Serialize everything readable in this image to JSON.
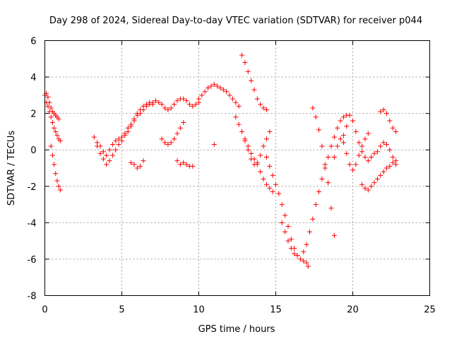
{
  "chart_data": {
    "type": "scatter",
    "title": "Day 298 of 2024, Sidereal Day-to-day VTEC variation (SDTVAR) for receiver p044",
    "xlabel": "GPS time / hours",
    "ylabel": "SDTVAR / TECUs",
    "xlim": [
      0,
      25
    ],
    "ylim": [
      -8,
      6
    ],
    "xticks": [
      0,
      5,
      10,
      15,
      20,
      25
    ],
    "yticks": [
      -8,
      -6,
      -4,
      -2,
      0,
      2,
      4,
      6
    ],
    "grid": true,
    "marker": "+",
    "color": "#ff0000",
    "series": [
      {
        "name": "SDTVAR",
        "x": [
          0.0,
          0.1,
          0.2,
          0.3,
          0.4,
          0.5,
          0.6,
          0.7,
          0.8,
          0.9,
          0.1,
          0.2,
          0.3,
          0.4,
          0.5,
          0.6,
          0.7,
          0.8,
          0.9,
          1.0,
          0.4,
          0.5,
          0.6,
          0.7,
          0.8,
          0.9,
          1.0,
          3.2,
          3.4,
          3.6,
          3.8,
          4.0,
          4.2,
          4.4,
          4.6,
          4.8,
          5.0,
          5.2,
          5.4,
          5.6,
          5.8,
          6.0,
          6.2,
          6.4,
          6.6,
          6.8,
          3.4,
          3.6,
          3.8,
          4.0,
          4.2,
          4.4,
          4.6,
          4.8,
          5.0,
          5.2,
          5.4,
          5.6,
          5.8,
          6.0,
          6.2,
          6.4,
          6.6,
          6.8,
          7.0,
          5.6,
          5.8,
          6.0,
          6.2,
          6.4,
          7.0,
          7.2,
          7.4,
          7.6,
          7.8,
          8.0,
          8.2,
          8.4,
          8.6,
          8.8,
          9.0,
          9.2,
          9.4,
          9.6,
          9.8,
          10.0,
          7.6,
          7.8,
          8.0,
          8.2,
          8.4,
          8.6,
          8.8,
          9.0,
          8.6,
          8.8,
          9.0,
          9.2,
          9.4,
          9.6,
          10.0,
          10.2,
          10.4,
          10.6,
          10.8,
          11.0,
          11.2,
          11.4,
          11.6,
          11.8,
          12.0,
          12.2,
          12.4,
          12.6,
          11.0,
          12.4,
          12.6,
          12.8,
          13.0,
          13.2,
          13.4,
          13.6,
          13.8,
          14.0,
          14.2,
          14.4,
          14.6,
          14.8,
          12.8,
          13.0,
          13.2,
          13.4,
          13.6,
          13.8,
          14.0,
          14.2,
          14.4,
          13.0,
          13.2,
          13.4,
          13.6,
          13.8,
          14.0,
          14.2,
          14.4,
          14.6,
          14.4,
          14.6,
          14.8,
          15.0,
          15.2,
          15.4,
          15.6,
          15.8,
          16.0,
          16.2,
          16.4,
          16.6,
          16.8,
          17.0,
          17.1,
          15.4,
          15.6,
          15.8,
          16.0,
          16.2,
          16.4,
          16.8,
          17.0,
          17.2,
          17.4,
          17.6,
          17.8,
          18.0,
          18.2,
          18.4,
          18.6,
          18.8,
          19.0,
          19.2,
          19.4,
          19.6,
          17.4,
          17.6,
          17.8,
          18.0,
          18.2,
          18.4,
          18.6,
          18.8,
          18.8,
          19.0,
          19.2,
          19.4,
          19.6,
          19.8,
          20.0,
          20.2,
          20.4,
          20.6,
          20.8,
          21.0,
          19.4,
          19.6,
          19.8,
          20.0,
          20.2,
          20.4,
          20.6,
          20.8,
          21.0,
          21.2,
          21.4,
          21.6,
          21.8,
          22.0,
          22.2,
          22.4,
          22.6,
          22.8,
          20.6,
          20.8,
          21.0,
          21.2,
          21.4,
          21.6,
          21.8,
          22.0,
          22.2,
          22.4,
          22.6,
          22.8,
          21.8,
          22.0,
          22.2,
          22.4,
          22.6,
          22.8
        ],
        "y": [
          3.0,
          3.1,
          2.9,
          2.6,
          2.3,
          2.1,
          2.0,
          1.9,
          1.8,
          1.7,
          2.6,
          2.4,
          2.1,
          1.8,
          1.5,
          1.2,
          1.0,
          0.8,
          0.6,
          0.5,
          0.2,
          -0.3,
          -0.8,
          -1.3,
          -1.7,
          -2.0,
          -2.2,
          0.7,
          0.4,
          0.2,
          -0.1,
          -0.3,
          0.0,
          0.3,
          0.5,
          0.6,
          0.7,
          0.9,
          1.2,
          1.4,
          1.7,
          2.0,
          2.2,
          2.4,
          2.5,
          2.6,
          0.2,
          -0.2,
          -0.5,
          -0.8,
          -0.6,
          -0.3,
          0.0,
          0.3,
          0.5,
          0.8,
          1.0,
          1.3,
          1.6,
          1.9,
          2.0,
          2.2,
          2.4,
          2.5,
          2.5,
          -0.7,
          -0.8,
          -1.0,
          -0.9,
          -0.6,
          2.6,
          2.7,
          2.6,
          2.5,
          2.3,
          2.2,
          2.3,
          2.5,
          2.7,
          2.8,
          2.8,
          2.7,
          2.5,
          2.4,
          2.5,
          2.6,
          0.6,
          0.4,
          0.3,
          0.4,
          0.6,
          0.9,
          1.2,
          1.5,
          -0.6,
          -0.8,
          -0.7,
          -0.8,
          -0.9,
          -0.9,
          2.8,
          3.0,
          3.2,
          3.4,
          3.5,
          3.6,
          3.5,
          3.4,
          3.3,
          3.2,
          3.0,
          2.8,
          2.6,
          2.4,
          0.3,
          1.8,
          1.4,
          1.0,
          0.6,
          0.2,
          -0.2,
          -0.5,
          -0.8,
          -1.2,
          -1.6,
          -1.9,
          -2.1,
          -2.3,
          5.2,
          4.8,
          4.3,
          3.8,
          3.3,
          2.8,
          2.5,
          2.3,
          2.2,
          0.5,
          0.0,
          -0.5,
          -0.8,
          -0.7,
          -0.3,
          0.2,
          0.6,
          1.0,
          -0.4,
          -0.9,
          -1.4,
          -1.9,
          -2.4,
          -3.0,
          -3.6,
          -4.2,
          -4.9,
          -5.4,
          -5.8,
          -6.0,
          -6.1,
          -6.2,
          -6.4,
          -4.0,
          -4.5,
          -5.0,
          -5.4,
          -5.7,
          -5.8,
          -5.6,
          -5.2,
          -4.5,
          -3.8,
          -3.0,
          -2.3,
          -1.6,
          -1.0,
          -0.4,
          0.2,
          0.7,
          1.2,
          1.6,
          1.8,
          1.9,
          2.3,
          1.8,
          1.1,
          0.2,
          -0.8,
          -1.8,
          -3.2,
          -4.7,
          -0.4,
          0.2,
          0.6,
          0.4,
          -0.2,
          -0.8,
          -1.1,
          -0.8,
          -0.3,
          0.2,
          0.6,
          0.9,
          0.8,
          1.3,
          1.9,
          1.6,
          1.0,
          0.4,
          -0.1,
          -0.4,
          -0.6,
          -0.4,
          -0.2,
          -0.1,
          0.2,
          0.4,
          0.3,
          0.0,
          -0.4,
          -0.8,
          -1.9,
          -2.1,
          -2.2,
          -2.0,
          -1.8,
          -1.6,
          -1.4,
          -1.2,
          -1.0,
          -0.9,
          -0.7,
          -0.6,
          2.1,
          2.2,
          2.0,
          1.6,
          1.2,
          1.0
        ]
      }
    ]
  }
}
